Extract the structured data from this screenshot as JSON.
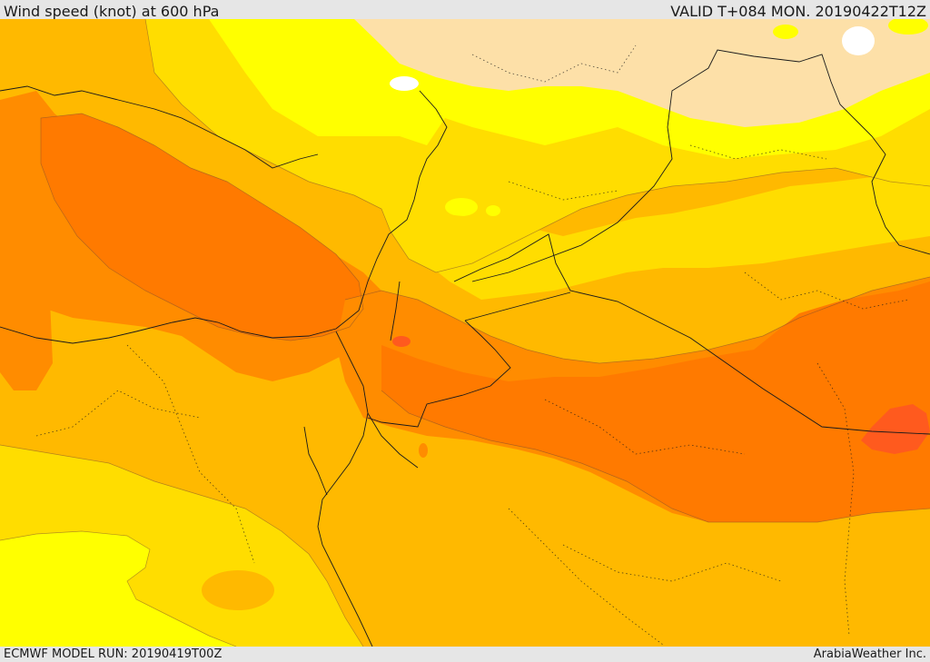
{
  "header": {
    "title": "Wind speed (knot) at 600 hPa",
    "valid_time": "VALID T+084 MON. 20190422T12Z"
  },
  "footer": {
    "model_run": "ECMWF MODEL RUN: 20190419T00Z",
    "credit": "ArabiaWeather Inc."
  },
  "map": {
    "product": "wind-speed-shading",
    "colors": {
      "band_lightest": "#fde0a8",
      "band_yellow": "#ffff00",
      "band_gold": "#ffdd00",
      "band_amber": "#ffb900",
      "band_orange": "#ff8c00",
      "band_dark_orange": "#ff7a00",
      "band_red": "#ff5a1e",
      "white": "#ffffff",
      "border_line": "#1a1a1a"
    }
  }
}
